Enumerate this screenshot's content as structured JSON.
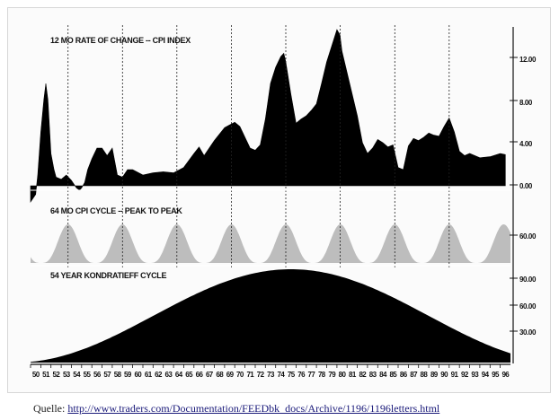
{
  "source": {
    "label": "Quelle:",
    "url_text": "http://www.traders.com/Documentation/FEEDbk_docs/Archive/1196/1196letters.html"
  },
  "chart_data": [
    {
      "type": "area",
      "title": "12 MO RATE OF CHANGE -- CPI INDEX",
      "y_ticks": [
        "12.00",
        "8.00",
        "4.00",
        "0.00"
      ],
      "ylim": [
        -2,
        13
      ],
      "fill_color": "#000000",
      "x": [
        50.0,
        50.5,
        50.7,
        51.0,
        51.3,
        51.5,
        51.7,
        52.0,
        52.3,
        52.5,
        53.0,
        53.5,
        54.0,
        54.5,
        54.8,
        55.0,
        55.3,
        55.6,
        56.0,
        56.5,
        57.0,
        57.5,
        58.0,
        58.5,
        59.0,
        59.5,
        60.0,
        61.0,
        62.0,
        63.0,
        64.0,
        65.0,
        66.0,
        66.5,
        67.0,
        68.0,
        69.0,
        70.0,
        70.5,
        71.0,
        71.5,
        72.0,
        72.5,
        73.0,
        73.5,
        74.0,
        74.5,
        74.8,
        75.0,
        75.5,
        76.0,
        76.5,
        77.0,
        77.5,
        78.0,
        78.5,
        79.0,
        79.5,
        80.0,
        80.3,
        80.5,
        81.0,
        81.5,
        82.0,
        82.5,
        83.0,
        83.5,
        84.0,
        84.5,
        85.0,
        85.5,
        86.0,
        86.5,
        87.0,
        87.5,
        88.0,
        88.5,
        89.0,
        89.5,
        90.0,
        90.5,
        91.0,
        91.5,
        92.0,
        92.5,
        93.0,
        94.0,
        95.0,
        96.0,
        96.5
      ],
      "values": [
        -1.5,
        -0.8,
        1.0,
        5.0,
        8.0,
        9.5,
        8.0,
        3.0,
        1.5,
        0.8,
        0.6,
        1.0,
        0.5,
        -0.2,
        -0.4,
        -0.2,
        0.3,
        1.5,
        2.5,
        3.5,
        3.5,
        2.8,
        3.5,
        1.0,
        0.8,
        1.5,
        1.5,
        1.0,
        1.2,
        1.3,
        1.2,
        1.7,
        3.0,
        3.6,
        2.8,
        4.2,
        5.4,
        5.9,
        5.5,
        4.5,
        3.5,
        3.3,
        3.8,
        6.2,
        9.5,
        11.0,
        12.0,
        12.3,
        11.5,
        8.5,
        5.8,
        6.2,
        6.5,
        7.0,
        7.6,
        9.5,
        11.5,
        13.0,
        14.5,
        14.0,
        12.5,
        10.5,
        8.5,
        6.5,
        4.0,
        3.0,
        3.5,
        4.3,
        4.0,
        3.6,
        3.8,
        1.7,
        1.5,
        3.7,
        4.4,
        4.2,
        4.5,
        4.9,
        4.7,
        4.6,
        5.5,
        6.3,
        5.0,
        3.2,
        2.8,
        3.0,
        2.6,
        2.7,
        3.0,
        2.9
      ]
    },
    {
      "type": "area",
      "title": "64 MO CPI CYCLE -- PEAK TO PEAK",
      "y_ticks": [
        "60.00"
      ],
      "cycle_months": 64,
      "peak_years": [
        53.67,
        59.0,
        64.33,
        69.67,
        75.0,
        80.33,
        85.67,
        91.0
      ],
      "fill_color": "#bdbdbd"
    },
    {
      "type": "area",
      "title": "54 YEAR KONDRATIEFF CYCLE",
      "y_ticks": [
        "90.00",
        "60.00",
        "30.00"
      ],
      "ylim": [
        0,
        100
      ],
      "cycle_years": 54,
      "peak_year": 75.5,
      "fill_color": "#000000"
    }
  ],
  "x_axis": {
    "labels": [
      "50",
      "51",
      "52",
      "53",
      "54",
      "55",
      "56",
      "57",
      "58",
      "59",
      "60",
      "61",
      "62",
      "63",
      "64",
      "65",
      "66",
      "67",
      "68",
      "69",
      "70",
      "71",
      "72",
      "73",
      "74",
      "75",
      "76",
      "77",
      "78",
      "79",
      "80",
      "81",
      "82",
      "83",
      "84",
      "85",
      "86",
      "87",
      "88",
      "89",
      "90",
      "91",
      "92",
      "93",
      "94",
      "95",
      "96"
    ],
    "range": [
      50,
      97
    ]
  },
  "vertical_markers": [
    53.67,
    59.0,
    64.33,
    69.67,
    75.0,
    80.33,
    85.67,
    91.0
  ]
}
